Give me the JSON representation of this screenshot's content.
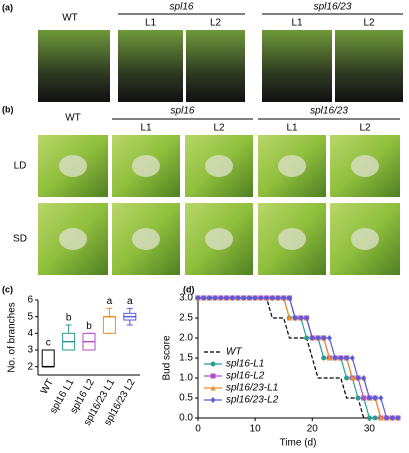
{
  "panel_a": {
    "label": "(a)",
    "wt": "WT",
    "groups": [
      {
        "name": "spl16",
        "lines": [
          "L1",
          "L2"
        ]
      },
      {
        "name": "spl16/23",
        "lines": [
          "L1",
          "L2"
        ]
      }
    ]
  },
  "panel_b": {
    "label": "(b)",
    "wt": "WT",
    "groups": [
      {
        "name": "spl16",
        "lines": [
          "L1",
          "L2"
        ]
      },
      {
        "name": "spl16/23",
        "lines": [
          "L1",
          "L2"
        ]
      }
    ],
    "rows": [
      "LD",
      "SD"
    ]
  },
  "chart_data": [
    {
      "type": "box",
      "panel": "(c)",
      "y_label": "No. of branches",
      "categories": [
        "WT",
        "spl16 L1",
        "spl16 L2",
        "spl16/23 L1",
        "spl16/23 L2"
      ],
      "colors": [
        "#000000",
        "#2a9d8f",
        "#b24fc9",
        "#f28c28",
        "#5b5bd6"
      ],
      "min": [
        2,
        3,
        3,
        4,
        4.5
      ],
      "q1": [
        2,
        3,
        3,
        4,
        4.8
      ],
      "median": [
        2,
        3.5,
        3.5,
        5,
        5
      ],
      "q3": [
        3,
        4,
        4,
        5,
        5.2
      ],
      "max": [
        3,
        4.5,
        4,
        5.5,
        5.5
      ],
      "letters": [
        "c",
        "b",
        "b",
        "a",
        "a"
      ],
      "letter_color": "#c9a227",
      "ylim": [
        1.5,
        6
      ],
      "yticks": [
        2,
        3,
        4,
        5,
        6
      ]
    },
    {
      "type": "line",
      "panel": "(d)",
      "x_label": "Time (d)",
      "y_label": "Bud score",
      "x": [
        0,
        1,
        2,
        3,
        4,
        5,
        6,
        7,
        8,
        9,
        10,
        11,
        12,
        13,
        14,
        15,
        16,
        17,
        18,
        19,
        20,
        21,
        22,
        23,
        24,
        25,
        26,
        27,
        28,
        29,
        30,
        31,
        32,
        33,
        34,
        35
      ],
      "series": [
        {
          "name": "WT",
          "color": "#000000",
          "dashed": true,
          "marker": "none",
          "values": [
            3,
            3,
            3,
            3,
            3,
            3,
            3,
            3,
            3,
            3,
            3,
            3,
            3,
            2.5,
            2.5,
            2.5,
            2,
            2,
            2,
            2,
            1.5,
            1,
            1,
            1,
            1,
            1,
            0.5,
            0.5,
            0.5,
            0,
            0,
            0,
            0,
            0,
            0,
            0
          ]
        },
        {
          "name": "spl16-L1",
          "color": "#2a9d8f",
          "dashed": false,
          "marker": "circle",
          "values": [
            3,
            3,
            3,
            3,
            3,
            3,
            3,
            3,
            3,
            3,
            3,
            3,
            3,
            3,
            3,
            3,
            2.5,
            2.5,
            2.5,
            2,
            2,
            2,
            1.5,
            1.5,
            1.5,
            1.5,
            1,
            1,
            0.5,
            0.5,
            0,
            0,
            0,
            0,
            0,
            0
          ]
        },
        {
          "name": "spl16-L2",
          "color": "#b24fc9",
          "dashed": false,
          "marker": "square",
          "values": [
            3,
            3,
            3,
            3,
            3,
            3,
            3,
            3,
            3,
            3,
            3,
            3,
            3,
            3,
            3,
            3,
            3,
            2.5,
            2.5,
            2.5,
            2,
            2,
            2,
            1.5,
            1.5,
            1.5,
            1.5,
            1,
            1,
            0.5,
            0.5,
            0.5,
            0,
            0,
            0,
            0
          ]
        },
        {
          "name": "spl16/23-L1",
          "color": "#f28c28",
          "dashed": false,
          "marker": "triangle",
          "values": [
            3,
            3,
            3,
            3,
            3,
            3,
            3,
            3,
            3,
            3,
            3,
            3,
            3,
            3,
            3,
            3,
            2.5,
            2.5,
            2.5,
            2.5,
            2,
            2,
            2,
            1.5,
            1.5,
            1.5,
            1.5,
            1,
            1,
            1,
            0.5,
            0.5,
            0,
            0,
            0,
            0
          ]
        },
        {
          "name": "spl16/23-L2",
          "color": "#5b5bd6",
          "dashed": false,
          "marker": "diamond",
          "values": [
            3,
            3,
            3,
            3,
            3,
            3,
            3,
            3,
            3,
            3,
            3,
            3,
            3,
            3,
            3,
            3,
            3,
            2.5,
            2.5,
            2.5,
            2,
            2,
            2,
            2,
            1.5,
            1.5,
            1.5,
            1.5,
            1,
            1,
            0.5,
            0.5,
            0.5,
            0,
            0,
            0
          ]
        }
      ],
      "xlim": [
        0,
        35
      ],
      "xticks": [
        0,
        10,
        20,
        30
      ],
      "ylim": [
        0,
        3
      ],
      "yticks": [
        {
          "value": 0,
          "label": "0.0"
        },
        {
          "value": 0.5,
          "label": "0.5"
        },
        {
          "value": 1,
          "label": "1.0"
        },
        {
          "value": 1.5,
          "label": "1.5"
        },
        {
          "value": 2,
          "label": "2.0"
        },
        {
          "value": 2.5,
          "label": "2.5"
        },
        {
          "value": 3,
          "label": "3.0"
        }
      ]
    }
  ]
}
